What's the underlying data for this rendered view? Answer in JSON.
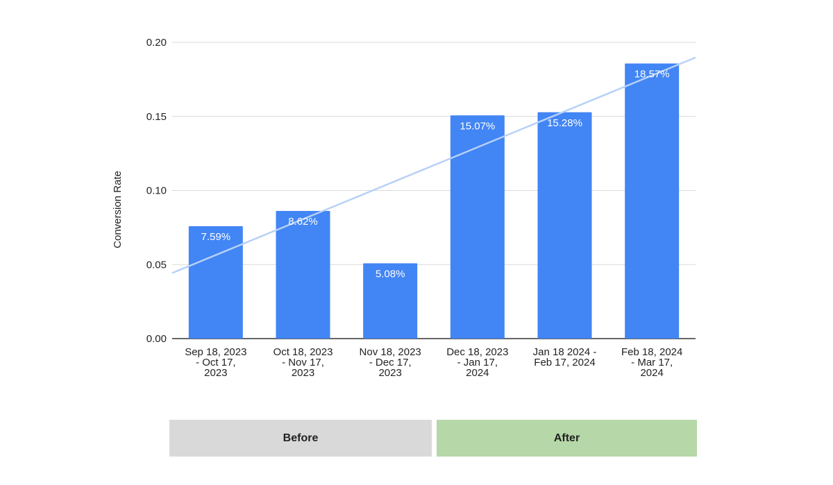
{
  "chart_data": {
    "type": "bar",
    "title": "",
    "xlabel": "",
    "ylabel": "Conversion Rate",
    "ylim": [
      0,
      0.2
    ],
    "yticks": [
      "0.00",
      "0.05",
      "0.10",
      "0.15",
      "0.20"
    ],
    "grid": true,
    "legend": "none",
    "categories": [
      [
        "Sep 18, 2023",
        "- Oct 17,",
        "2023"
      ],
      [
        "Oct 18, 2023",
        "- Nov 17,",
        "2023"
      ],
      [
        "Nov 18, 2023",
        "- Dec 17,",
        "2023"
      ],
      [
        "Dec 18, 2023",
        "- Jan 17,",
        "2024"
      ],
      [
        "Jan 18 2024 -",
        "Feb 17, 2024"
      ],
      [
        "Feb 18, 2024",
        "- Mar 17,",
        "2024"
      ]
    ],
    "values": [
      0.0759,
      0.0862,
      0.0508,
      0.1507,
      0.1528,
      0.1857
    ],
    "data_labels": [
      "7.59%",
      "8.62%",
      "5.08%",
      "15.07%",
      "15.28%",
      "18.57%"
    ],
    "trendline": {
      "type": "linear",
      "color": "#b7d1f7"
    },
    "colors": {
      "bar": "#4285f4",
      "grid": "#d9d9d9",
      "axis": "#333333"
    }
  },
  "phases": {
    "before_label": "Before",
    "after_label": "After",
    "before_color": "#d9d9d9",
    "after_color": "#b6d7a8"
  }
}
